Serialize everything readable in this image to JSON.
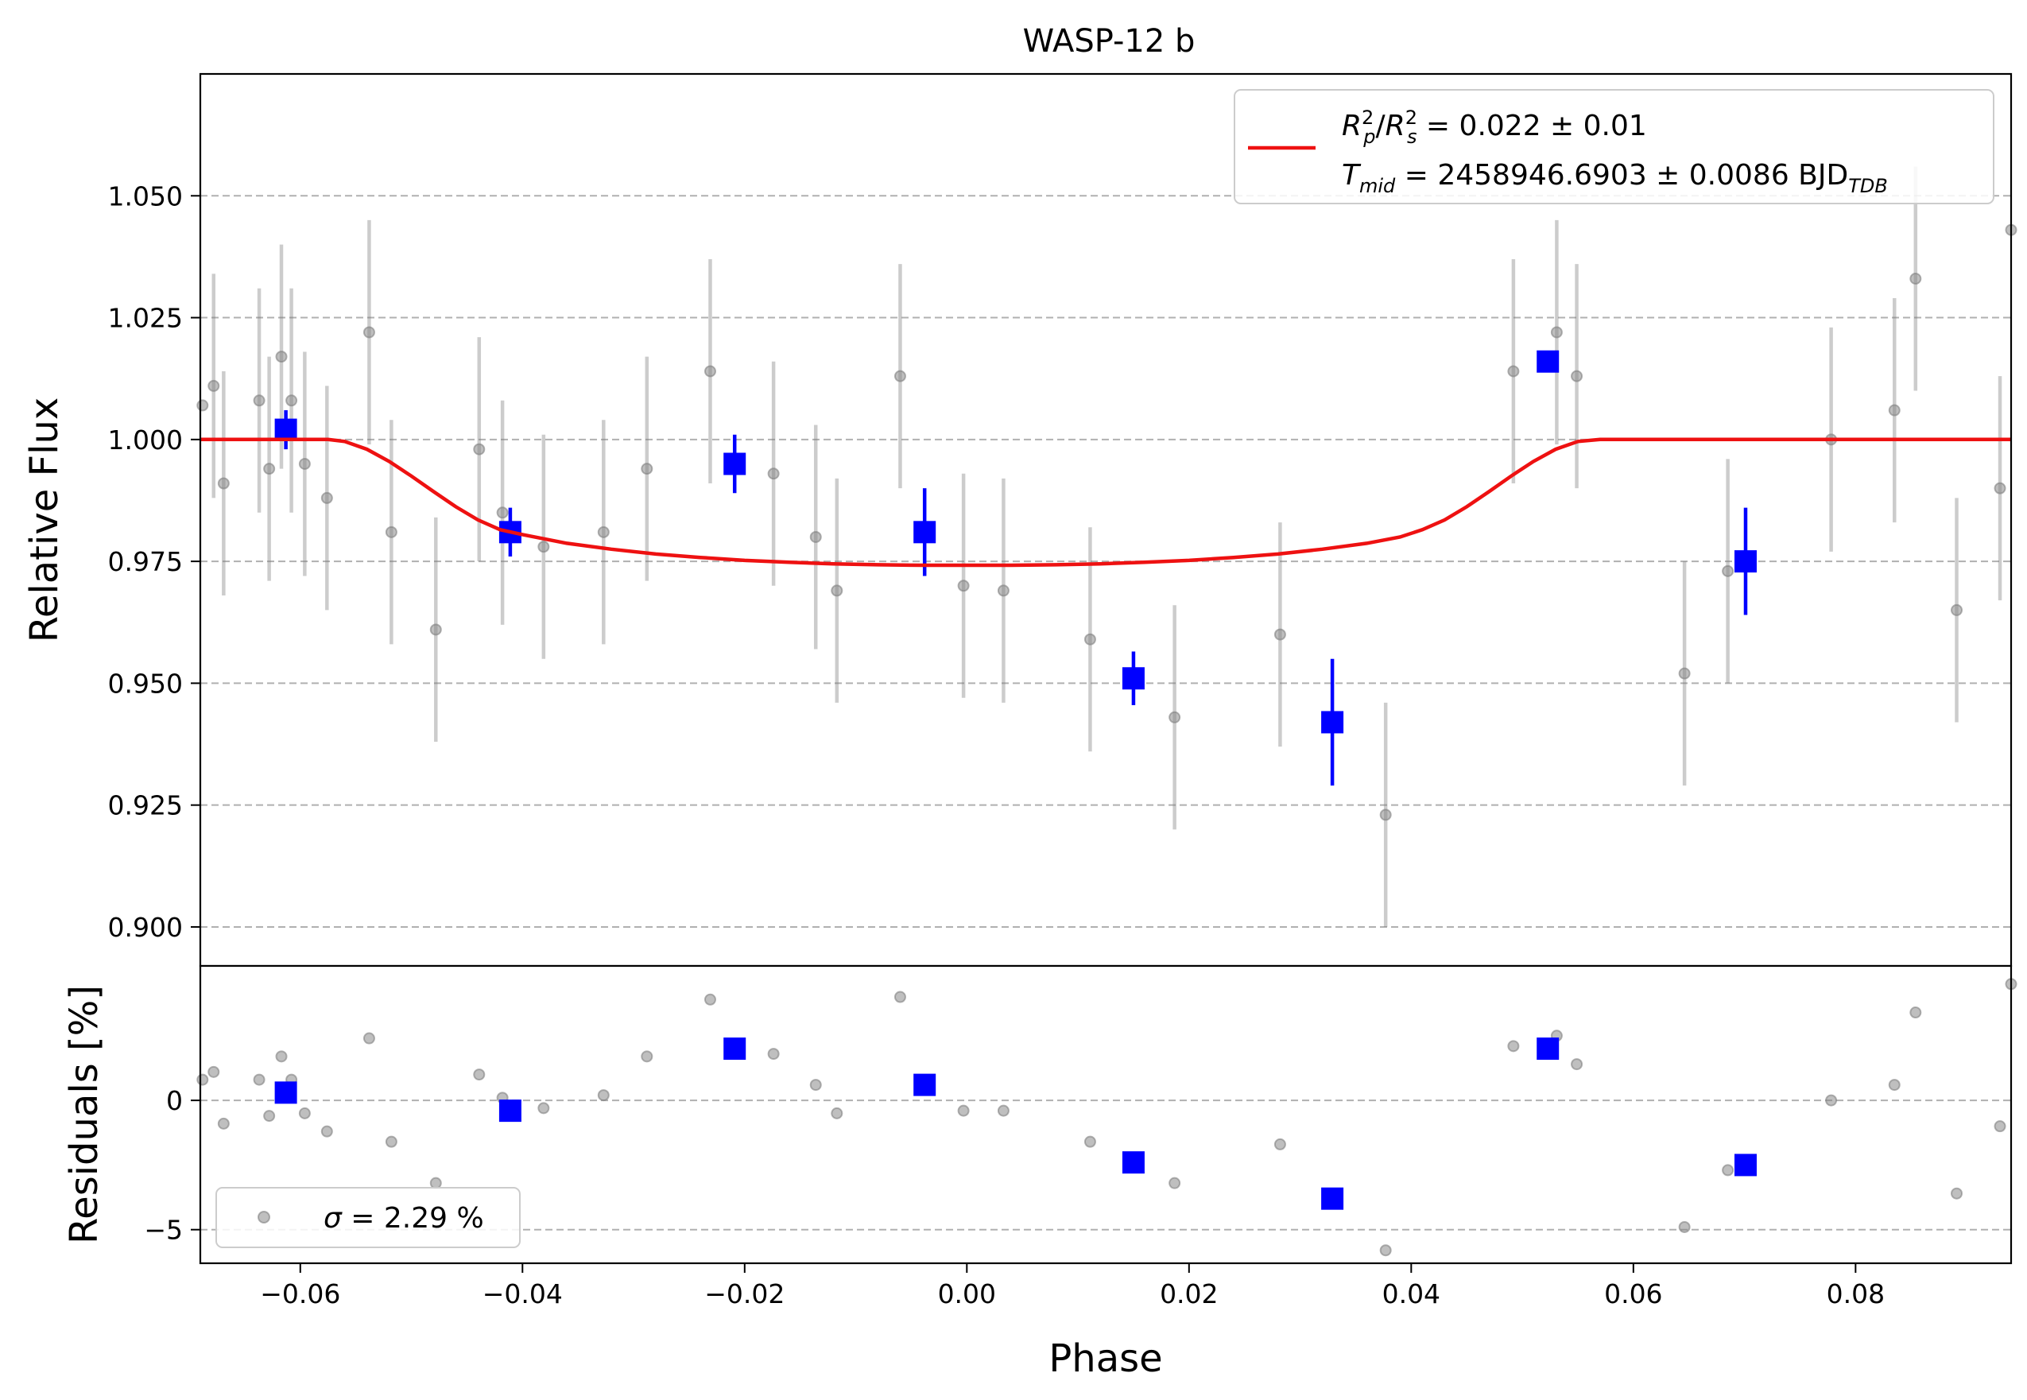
{
  "chart_data": {
    "type": "scatter",
    "title": "WASP-12 b",
    "xlabel": "Phase",
    "xlim": [
      -0.069,
      0.094
    ],
    "grid": "horizontal dashed",
    "top_panel": {
      "ylabel": "Relative Flux",
      "ylim": [
        0.892,
        1.075
      ],
      "yticks": [
        0.9,
        0.925,
        0.95,
        0.975,
        1.0,
        1.025,
        1.05
      ],
      "ytick_labels": [
        "0.900",
        "0.925",
        "0.950",
        "0.975",
        "1.000",
        "1.025",
        "1.050"
      ],
      "legend_position": "top-right",
      "legend": {
        "rp_sym": "R",
        "rp_sub": "p",
        "rp_sup": "2",
        "rs_sym": "R",
        "rs_sub": "s",
        "rs_sup": "2",
        "rp_value": " = 0.022 ± 0.01",
        "t_sym": "T",
        "t_sub": "mid",
        "t_value": " = 2458946.6903 ± 0.0086 BJD",
        "t_unit_sub": "TDB"
      },
      "raw_color": "#808080",
      "raw_points": [
        {
          "x": -0.0688,
          "y": 1.007,
          "err": 0.0
        },
        {
          "x": -0.0678,
          "y": 1.011,
          "err": 0.023
        },
        {
          "x": -0.0669,
          "y": 0.991,
          "err": 0.023
        },
        {
          "x": -0.0637,
          "y": 1.008,
          "err": 0.023
        },
        {
          "x": -0.0628,
          "y": 0.994,
          "err": 0.023
        },
        {
          "x": -0.0617,
          "y": 1.017,
          "err": 0.023
        },
        {
          "x": -0.0608,
          "y": 1.008,
          "err": 0.023
        },
        {
          "x": -0.0596,
          "y": 0.995,
          "err": 0.023
        },
        {
          "x": -0.0576,
          "y": 0.988,
          "err": 0.023
        },
        {
          "x": -0.0538,
          "y": 1.022,
          "err": 0.023
        },
        {
          "x": -0.0518,
          "y": 0.981,
          "err": 0.023
        },
        {
          "x": -0.0478,
          "y": 0.961,
          "err": 0.023
        },
        {
          "x": -0.0439,
          "y": 0.998,
          "err": 0.023
        },
        {
          "x": -0.0418,
          "y": 0.985,
          "err": 0.023
        },
        {
          "x": -0.0381,
          "y": 0.978,
          "err": 0.023
        },
        {
          "x": -0.0327,
          "y": 0.981,
          "err": 0.023
        },
        {
          "x": -0.0288,
          "y": 0.994,
          "err": 0.023
        },
        {
          "x": -0.0231,
          "y": 1.014,
          "err": 0.023
        },
        {
          "x": -0.0174,
          "y": 0.993,
          "err": 0.023
        },
        {
          "x": -0.0136,
          "y": 0.98,
          "err": 0.023
        },
        {
          "x": -0.0117,
          "y": 0.969,
          "err": 0.023
        },
        {
          "x": -0.006,
          "y": 1.013,
          "err": 0.023
        },
        {
          "x": -0.0003,
          "y": 0.97,
          "err": 0.023
        },
        {
          "x": 0.0033,
          "y": 0.969,
          "err": 0.023
        },
        {
          "x": 0.0111,
          "y": 0.959,
          "err": 0.023
        },
        {
          "x": 0.0187,
          "y": 0.943,
          "err": 0.023
        },
        {
          "x": 0.0282,
          "y": 0.96,
          "err": 0.023
        },
        {
          "x": 0.0377,
          "y": 0.923,
          "err": 0.023
        },
        {
          "x": 0.0492,
          "y": 1.014,
          "err": 0.023
        },
        {
          "x": 0.0531,
          "y": 1.022,
          "err": 0.023
        },
        {
          "x": 0.0549,
          "y": 1.013,
          "err": 0.023
        },
        {
          "x": 0.0646,
          "y": 0.952,
          "err": 0.023
        },
        {
          "x": 0.0685,
          "y": 0.973,
          "err": 0.023
        },
        {
          "x": 0.0778,
          "y": 1.0,
          "err": 0.023
        },
        {
          "x": 0.0835,
          "y": 1.006,
          "err": 0.023
        },
        {
          "x": 0.0854,
          "y": 1.033,
          "err": 0.023
        },
        {
          "x": 0.0891,
          "y": 0.965,
          "err": 0.023
        },
        {
          "x": 0.093,
          "y": 0.99,
          "err": 0.023
        },
        {
          "x": 0.094,
          "y": 1.043,
          "err": 0.0
        }
      ],
      "binned_color": "#0000ff",
      "binned_points": [
        {
          "x": -0.0613,
          "y": 1.002,
          "err": 0.004
        },
        {
          "x": -0.0411,
          "y": 0.981,
          "err": 0.005
        },
        {
          "x": -0.0209,
          "y": 0.995,
          "err": 0.006
        },
        {
          "x": -0.0038,
          "y": 0.981,
          "err": 0.009
        },
        {
          "x": 0.015,
          "y": 0.951,
          "err": 0.0055
        },
        {
          "x": 0.0329,
          "y": 0.942,
          "err": 0.013
        },
        {
          "x": 0.0523,
          "y": 1.016,
          "err": 0.002
        },
        {
          "x": 0.0701,
          "y": 0.975,
          "err": 0.011
        }
      ],
      "model_color": "#ee1111",
      "model_curve": {
        "x": [
          -0.069,
          -0.0575,
          -0.056,
          -0.054,
          -0.052,
          -0.05,
          -0.048,
          -0.046,
          -0.044,
          -0.042,
          -0.04,
          -0.036,
          -0.032,
          -0.028,
          -0.024,
          -0.02,
          -0.016,
          -0.012,
          -0.008,
          -0.004,
          0.0,
          0.004,
          0.008,
          0.012,
          0.016,
          0.02,
          0.024,
          0.028,
          0.032,
          0.036,
          0.039,
          0.041,
          0.043,
          0.045,
          0.047,
          0.049,
          0.051,
          0.053,
          0.055,
          0.057,
          0.06,
          0.07,
          0.08,
          0.094
        ],
        "y": [
          1.0,
          1.0,
          0.9996,
          0.998,
          0.9955,
          0.9925,
          0.9893,
          0.9862,
          0.9835,
          0.9815,
          0.9805,
          0.9787,
          0.9775,
          0.9765,
          0.9758,
          0.9752,
          0.9748,
          0.9745,
          0.9743,
          0.9742,
          0.9742,
          0.9742,
          0.9743,
          0.9745,
          0.9748,
          0.9752,
          0.9758,
          0.9765,
          0.9775,
          0.9787,
          0.98,
          0.9815,
          0.9835,
          0.9862,
          0.9893,
          0.9925,
          0.9955,
          0.998,
          0.9996,
          1.0,
          1.0,
          1.0,
          1.0,
          1.0
        ]
      }
    },
    "bottom_panel": {
      "ylabel": "Residuals [%]",
      "ylim": [
        -6.3,
        5.2
      ],
      "yticks": [
        -5,
        0
      ],
      "ytick_labels": [
        "−5",
        "0"
      ],
      "legend_position": "bottom-left",
      "legend_sigma_symbol": "σ",
      "legend_sigma_text": " = 2.29 %",
      "raw_residuals": [
        {
          "x": -0.0688,
          "y": 0.8
        },
        {
          "x": -0.0678,
          "y": 1.1
        },
        {
          "x": -0.0669,
          "y": -0.9
        },
        {
          "x": -0.0637,
          "y": 0.8
        },
        {
          "x": -0.0628,
          "y": -0.6
        },
        {
          "x": -0.0617,
          "y": 1.7
        },
        {
          "x": -0.0608,
          "y": 0.8
        },
        {
          "x": -0.0596,
          "y": -0.5
        },
        {
          "x": -0.0576,
          "y": -1.2
        },
        {
          "x": -0.0538,
          "y": 2.4
        },
        {
          "x": -0.0518,
          "y": -1.6
        },
        {
          "x": -0.0478,
          "y": -3.2
        },
        {
          "x": -0.0439,
          "y": 1.0
        },
        {
          "x": -0.0418,
          "y": 0.1
        },
        {
          "x": -0.0381,
          "y": -0.3
        },
        {
          "x": -0.0327,
          "y": 0.2
        },
        {
          "x": -0.0288,
          "y": 1.7
        },
        {
          "x": -0.0231,
          "y": 3.9
        },
        {
          "x": -0.0174,
          "y": 1.8
        },
        {
          "x": -0.0136,
          "y": 0.6
        },
        {
          "x": -0.0117,
          "y": -0.5
        },
        {
          "x": -0.006,
          "y": 4.0
        },
        {
          "x": -0.0003,
          "y": -0.4
        },
        {
          "x": 0.0033,
          "y": -0.4
        },
        {
          "x": 0.0111,
          "y": -1.6
        },
        {
          "x": 0.0187,
          "y": -3.2
        },
        {
          "x": 0.0282,
          "y": -1.7
        },
        {
          "x": 0.0377,
          "y": -5.8
        },
        {
          "x": 0.0492,
          "y": 2.1
        },
        {
          "x": 0.0531,
          "y": 2.5
        },
        {
          "x": 0.0549,
          "y": 1.4
        },
        {
          "x": 0.0646,
          "y": -4.9
        },
        {
          "x": 0.0685,
          "y": -2.7
        },
        {
          "x": 0.0778,
          "y": 0.0
        },
        {
          "x": 0.0835,
          "y": 0.6
        },
        {
          "x": 0.0854,
          "y": 3.4
        },
        {
          "x": 0.0891,
          "y": -3.6
        },
        {
          "x": 0.093,
          "y": -1.0
        },
        {
          "x": 0.094,
          "y": 4.5
        }
      ],
      "binned_residuals": [
        {
          "x": -0.0613,
          "y": 0.3
        },
        {
          "x": -0.0411,
          "y": -0.4
        },
        {
          "x": -0.0209,
          "y": 2.0
        },
        {
          "x": -0.0038,
          "y": 0.6
        },
        {
          "x": 0.015,
          "y": -2.4
        },
        {
          "x": 0.0329,
          "y": -3.8
        },
        {
          "x": 0.0523,
          "y": 2.0
        },
        {
          "x": 0.0701,
          "y": -2.5
        }
      ]
    },
    "xticks": [
      -0.06,
      -0.04,
      -0.02,
      0.0,
      0.02,
      0.04,
      0.06,
      0.08
    ],
    "xtick_labels": [
      "−0.06",
      "−0.04",
      "−0.02",
      "0.00",
      "0.02",
      "0.04",
      "0.06",
      "0.08"
    ]
  }
}
